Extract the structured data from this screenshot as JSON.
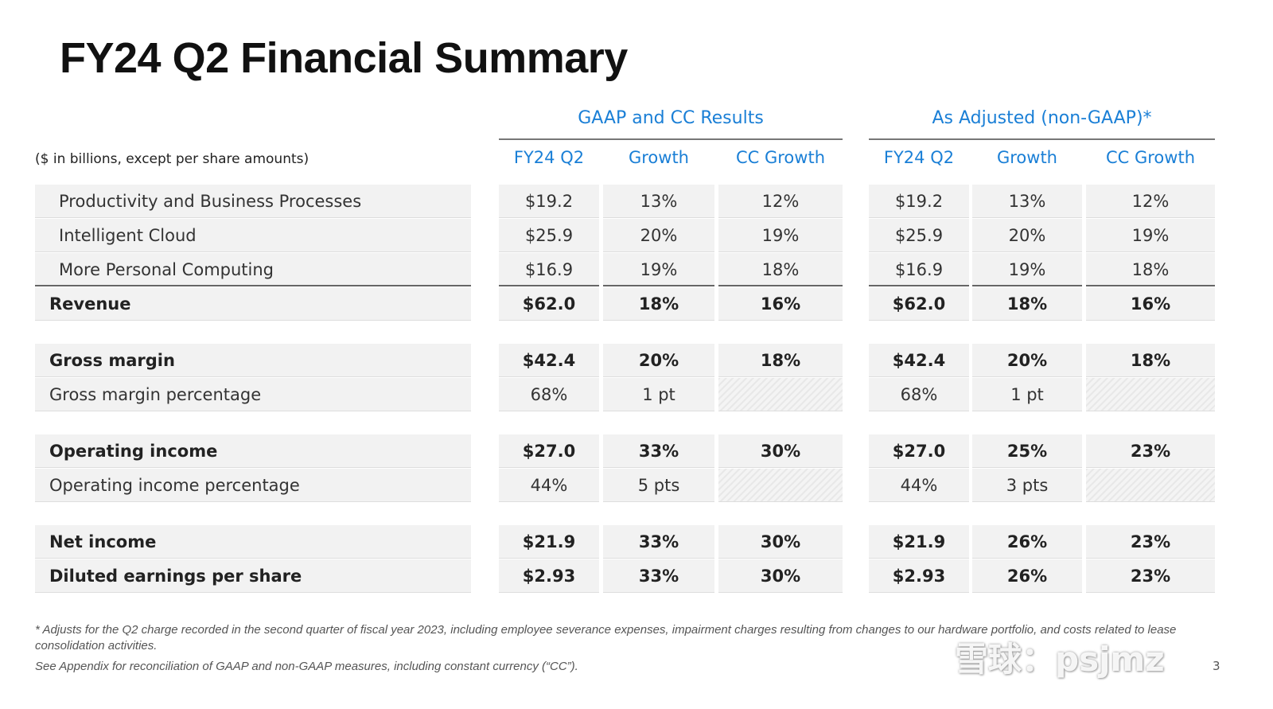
{
  "title": "FY24 Q2 Financial Summary",
  "units_note": "($ in billions, except per share amounts)",
  "groups": [
    {
      "title": "GAAP and CC Results",
      "columns": [
        "FY24 Q2",
        "Growth",
        "CC Growth"
      ]
    },
    {
      "title": "As Adjusted (non-GAAP)*",
      "columns": [
        "FY24 Q2",
        "Growth",
        "CC Growth"
      ]
    }
  ],
  "rows": [
    {
      "label": "Productivity and Business Processes",
      "bold": false,
      "indent": true,
      "gaap": [
        "$19.2",
        "13%",
        "12%"
      ],
      "adjusted": [
        "$19.2",
        "13%",
        "12%"
      ]
    },
    {
      "label": "Intelligent Cloud",
      "bold": false,
      "indent": true,
      "gaap": [
        "$25.9",
        "20%",
        "19%"
      ],
      "adjusted": [
        "$25.9",
        "20%",
        "19%"
      ]
    },
    {
      "label": "More Personal Computing",
      "bold": false,
      "indent": true,
      "gaap": [
        "$16.9",
        "19%",
        "18%"
      ],
      "adjusted": [
        "$16.9",
        "19%",
        "18%"
      ]
    },
    {
      "label": "Revenue",
      "bold": true,
      "gaap": [
        "$62.0",
        "18%",
        "16%"
      ],
      "adjusted": [
        "$62.0",
        "18%",
        "16%"
      ]
    },
    {
      "label": "Gross margin",
      "bold": true,
      "gaap": [
        "$42.4",
        "20%",
        "18%"
      ],
      "adjusted": [
        "$42.4",
        "20%",
        "18%"
      ]
    },
    {
      "label": "Gross margin percentage",
      "bold": false,
      "gaap": [
        "68%",
        "1 pt",
        ""
      ],
      "adjusted": [
        "68%",
        "1 pt",
        ""
      ]
    },
    {
      "label": "Operating income",
      "bold": true,
      "gaap": [
        "$27.0",
        "33%",
        "30%"
      ],
      "adjusted": [
        "$27.0",
        "25%",
        "23%"
      ]
    },
    {
      "label": "Operating income percentage",
      "bold": false,
      "gaap": [
        "44%",
        "5 pts",
        ""
      ],
      "adjusted": [
        "44%",
        "3 pts",
        ""
      ]
    },
    {
      "label": "Net income",
      "bold": true,
      "gaap": [
        "$21.9",
        "33%",
        "30%"
      ],
      "adjusted": [
        "$21.9",
        "26%",
        "23%"
      ]
    },
    {
      "label": "Diluted earnings per share",
      "bold": true,
      "gaap": [
        "$2.93",
        "33%",
        "30%"
      ],
      "adjusted": [
        "$2.93",
        "26%",
        "23%"
      ]
    }
  ],
  "footnotes": [
    "* Adjusts for the Q2 charge recorded in the second quarter of fiscal year 2023, including employee severance expenses, impairment charges resulting from changes to our hardware portfolio, and costs related to lease consolidation activities.",
    "See Appendix for reconciliation of GAAP and non-GAAP measures, including constant currency (“CC”)."
  ],
  "page_number": "3",
  "watermark": "雪球：psjmz",
  "colors": {
    "accent": "#1a7fd6",
    "row_bg": "#f2f2f2"
  }
}
